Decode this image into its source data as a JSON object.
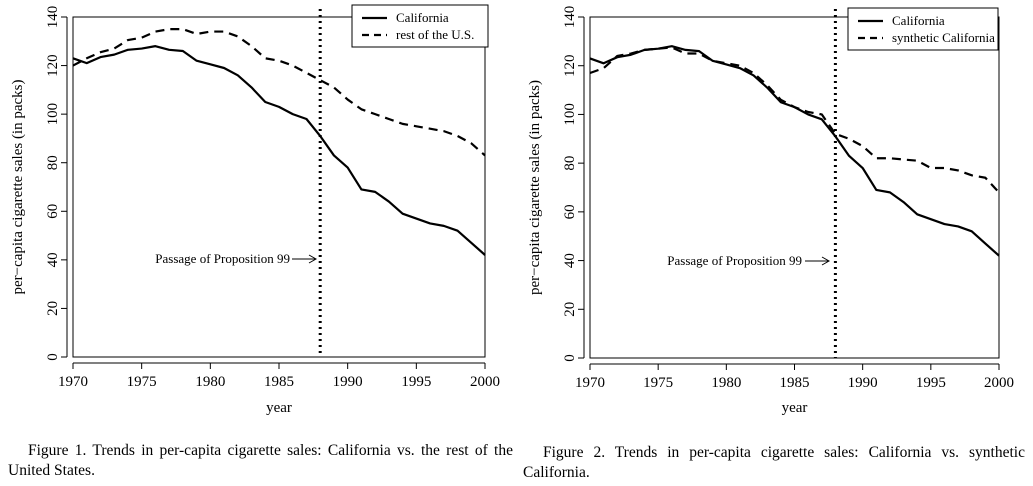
{
  "chart_data": [
    {
      "type": "line",
      "title": "",
      "xlabel": "year",
      "ylabel": "per−capita cigarette sales (in packs)",
      "xlim": [
        1970,
        2000
      ],
      "ylim": [
        0,
        140
      ],
      "xticks": [
        "1970",
        "1975",
        "1980",
        "1985",
        "1990",
        "1995",
        "2000"
      ],
      "yticks": [
        "0",
        "20",
        "40",
        "60",
        "80",
        "100",
        "120",
        "140"
      ],
      "x": [
        1970,
        1971,
        1972,
        1973,
        1974,
        1975,
        1976,
        1977,
        1978,
        1979,
        1980,
        1981,
        1982,
        1983,
        1984,
        1985,
        1986,
        1987,
        1988,
        1989,
        1990,
        1991,
        1992,
        1993,
        1994,
        1995,
        1996,
        1997,
        1998,
        1999,
        2000
      ],
      "series": [
        {
          "name": "California",
          "style": "solid",
          "values": [
            123,
            121,
            123.5,
            124.5,
            126.5,
            127,
            128,
            126.5,
            126,
            122,
            120.5,
            119,
            116,
            111,
            105,
            103,
            100,
            98,
            91,
            83,
            78,
            69,
            68,
            64,
            59,
            57,
            55,
            54,
            52,
            47,
            42
          ]
        },
        {
          "name": "rest of the U.S.",
          "style": "dashed",
          "values": [
            120,
            123,
            125.5,
            127,
            130.5,
            131.5,
            134,
            135,
            135,
            133,
            134,
            134,
            132,
            128,
            123,
            122,
            120,
            117,
            114,
            111,
            106,
            102,
            100,
            98,
            96,
            95,
            94,
            93,
            91,
            88,
            83
          ]
        }
      ],
      "legend": {
        "position": "top-right"
      },
      "annotation": {
        "text": "Passage of Proposition 99",
        "x": 1988,
        "y": 40
      },
      "vline": {
        "x": 1988,
        "style": "dotted"
      },
      "grid": false
    },
    {
      "type": "line",
      "title": "",
      "xlabel": "year",
      "ylabel": "per−capita cigarette sales (in packs)",
      "xlim": [
        1970,
        2000
      ],
      "ylim": [
        0,
        140
      ],
      "xticks": [
        "1970",
        "1975",
        "1980",
        "1985",
        "1990",
        "1995",
        "2000"
      ],
      "yticks": [
        "0",
        "20",
        "40",
        "60",
        "80",
        "100",
        "120",
        "140"
      ],
      "x": [
        1970,
        1971,
        1972,
        1973,
        1974,
        1975,
        1976,
        1977,
        1978,
        1979,
        1980,
        1981,
        1982,
        1983,
        1984,
        1985,
        1986,
        1987,
        1988,
        1989,
        1990,
        1991,
        1992,
        1993,
        1994,
        1995,
        1996,
        1997,
        1998,
        1999,
        2000
      ],
      "series": [
        {
          "name": "California",
          "style": "solid",
          "values": [
            123,
            121,
            123.5,
            124.5,
            126.5,
            127,
            128,
            126.5,
            126,
            122,
            120.5,
            119,
            116,
            111,
            105,
            103,
            100,
            98,
            91,
            83,
            78,
            69,
            68,
            64,
            59,
            57,
            55,
            54,
            52,
            47,
            42
          ]
        },
        {
          "name": "synthetic California",
          "style": "dashed",
          "values": [
            117,
            119,
            124,
            125,
            126.5,
            127,
            127.5,
            125,
            125,
            122,
            121,
            120,
            117,
            112,
            106,
            103,
            101,
            100,
            92,
            90,
            87,
            82,
            82,
            81.5,
            81,
            78,
            78,
            77,
            75,
            74,
            68
          ]
        }
      ],
      "legend": {
        "position": "top-right"
      },
      "annotation": {
        "text": "Passage of Proposition 99",
        "x": 1988,
        "y": 40
      },
      "vline": {
        "x": 1988,
        "style": "dotted"
      },
      "grid": false
    }
  ],
  "captions": [
    "Figure 1.  Trends in per-capita cigarette sales: California vs. the rest of the United States.",
    "Figure 2.  Trends in per-capita cigarette sales: California vs. synthetic California."
  ]
}
